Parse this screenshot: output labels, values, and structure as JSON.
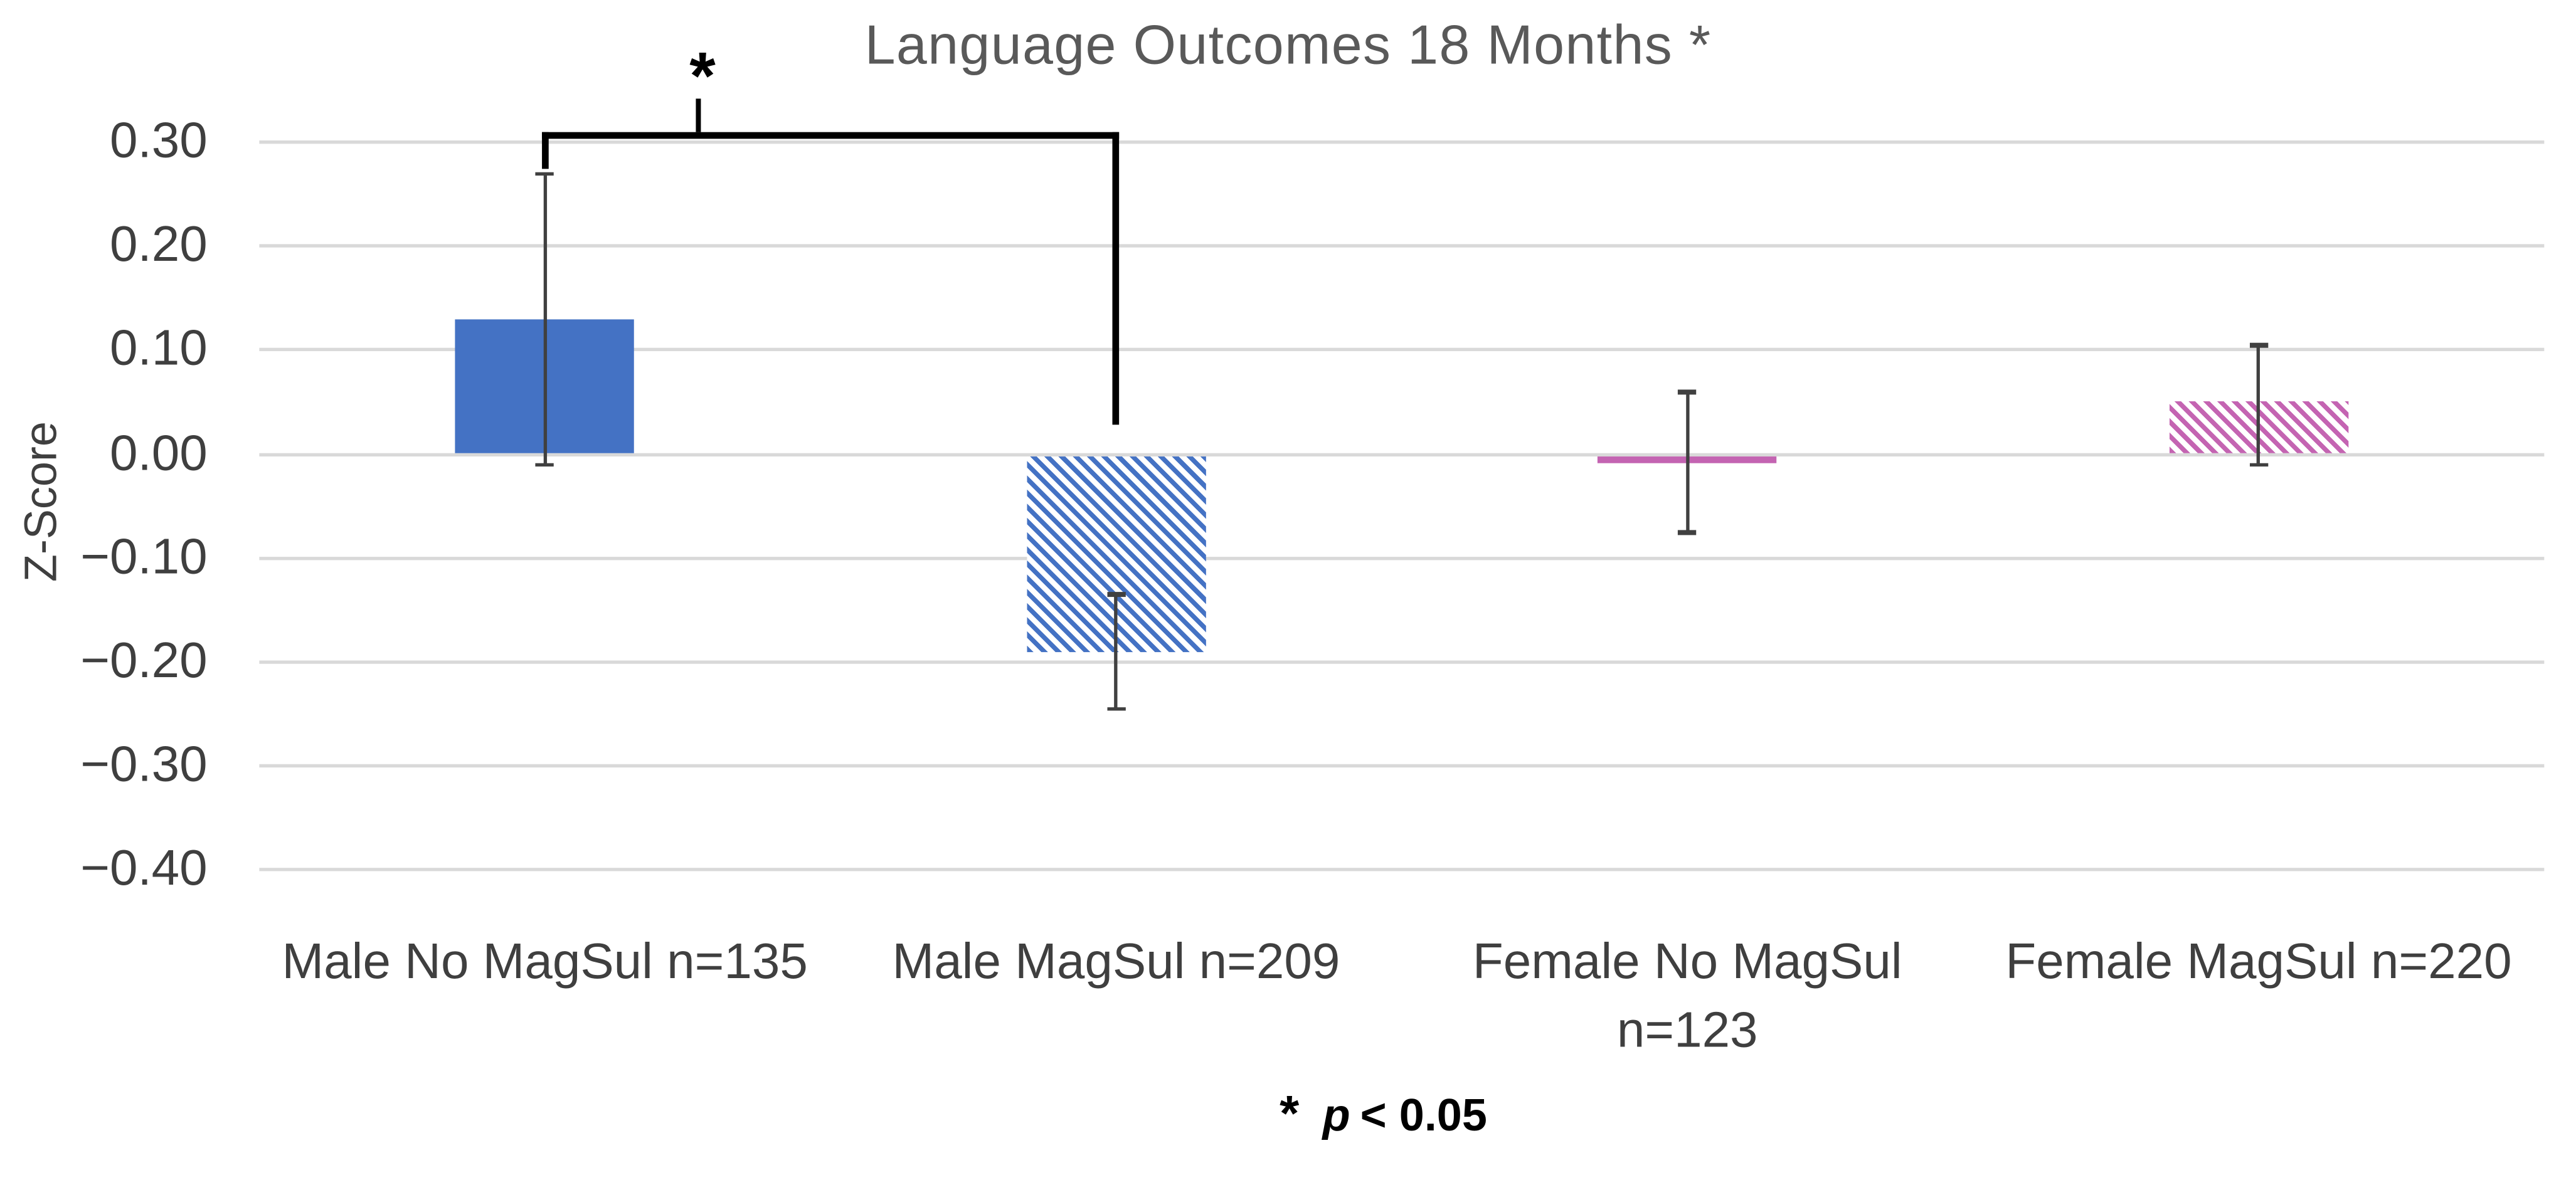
{
  "title": "Language Outcomes 18 Months *",
  "y_axis": {
    "label": "Z-Score",
    "tick_labels": [
      "0.30",
      "0.20",
      "0.10",
      "0.00",
      "−0.10",
      "−0.20",
      "−0.30",
      "−0.40"
    ]
  },
  "footnote": {
    "marker": "*",
    "p": "p",
    "condition": "< 0.05"
  },
  "colors": {
    "blue": "#4472C4",
    "pink": "#C464B2",
    "gridline": "#D9D9D9",
    "axis_text": "#3F3F3F",
    "title_text": "#595959",
    "error_bar": "#404040",
    "bracket": "#000000",
    "background": "#FFFFFF"
  },
  "chart_data": {
    "type": "bar",
    "title": "Language Outcomes 18 Months *",
    "xlabel": "",
    "ylabel": "Z-Score",
    "ylim": [
      -0.4,
      0.345
    ],
    "yticks": [
      0.3,
      0.2,
      0.1,
      0.0,
      -0.1,
      -0.2,
      -0.3,
      -0.4
    ],
    "grid": true,
    "legend": "none",
    "categories": [
      "Male No MagSul n=135",
      "Male MagSul n=209",
      "Female No MagSul n=123",
      "Female MagSul n=220"
    ],
    "category_label_lines": [
      [
        "Male No MagSul n=135"
      ],
      [
        "Male MagSul n=209"
      ],
      [
        "Female No MagSul",
        "n=123"
      ],
      [
        "Female MagSul n=220"
      ]
    ],
    "values": [
      0.13,
      -0.19,
      -0.005,
      0.05
    ],
    "error_bars": [
      {
        "low": -0.01,
        "high": 0.27
      },
      {
        "low": -0.245,
        "high": -0.135
      },
      {
        "low": -0.075,
        "high": 0.06
      },
      {
        "low": -0.01,
        "high": 0.105
      }
    ],
    "bar_styles": [
      {
        "slug": "male-no-magsul",
        "pattern": "solid",
        "color": "#4472C4"
      },
      {
        "slug": "male-magsul",
        "pattern": "hatch",
        "color": "#4472C4"
      },
      {
        "slug": "female-no-magsul",
        "pattern": "solid",
        "color": "#C464B2"
      },
      {
        "slug": "female-magsul",
        "pattern": "hatch",
        "color": "#C464B2"
      }
    ],
    "significance_bracket": {
      "label": "*",
      "between": [
        "Male No MagSul n=135",
        "Male MagSul n=209"
      ],
      "bracket_value": 0.31,
      "left_drop_to": 0.275,
      "right_drop_to": 0.028,
      "stem_top": 0.342,
      "stem_x_fraction": 0.27
    },
    "footnote": "* p < 0.05"
  }
}
